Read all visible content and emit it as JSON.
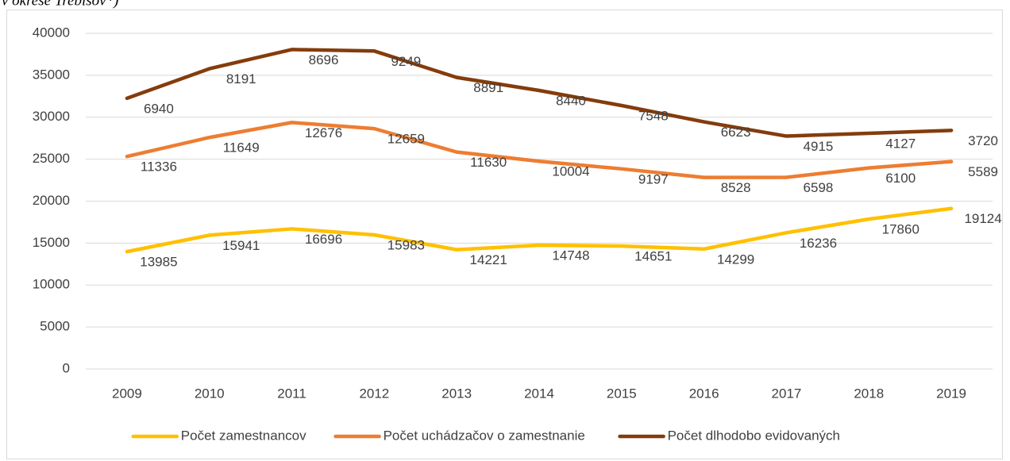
{
  "chart_data": {
    "type": "stacked_line",
    "title": "v okrese Trebišov*)",
    "categories": [
      "2009",
      "2010",
      "2011",
      "2012",
      "2013",
      "2014",
      "2015",
      "2016",
      "2017",
      "2018",
      "2019"
    ],
    "series": [
      {
        "name": "Počet zamestnancov",
        "color": "#FFC000",
        "values": [
          13985,
          15941,
          16696,
          15983,
          14221,
          14748,
          14651,
          14299,
          16236,
          17860,
          19124
        ]
      },
      {
        "name": "Počet uchádzačov o zamestnanie",
        "color": "#ED7D31",
        "values": [
          11336,
          11649,
          12676,
          12659,
          11630,
          10004,
          9197,
          8528,
          6598,
          6100,
          5589
        ]
      },
      {
        "name": "Počet dlhodobo evidovaných",
        "color": "#843C0C",
        "values": [
          6940,
          8191,
          8696,
          9249,
          8891,
          8440,
          7548,
          6623,
          4915,
          4127,
          3720
        ]
      }
    ],
    "ylim": [
      0,
      40000
    ],
    "yticks": [
      0,
      5000,
      10000,
      15000,
      20000,
      25000,
      30000,
      35000,
      40000
    ],
    "grid": true,
    "legend": "bottom"
  }
}
